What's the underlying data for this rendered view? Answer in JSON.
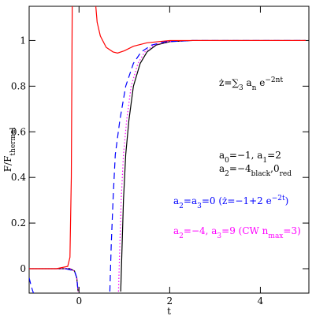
{
  "chart_data": {
    "type": "line",
    "xlabel": [
      {
        "t": "t"
      }
    ],
    "ylabel": [
      {
        "t": "F/F"
      },
      {
        "t": "thermal",
        "s": "sub"
      }
    ],
    "xlim": [
      -1.1,
      5.07
    ],
    "ylim": [
      -0.107,
      1.15
    ],
    "xticks": [
      0,
      2,
      4
    ],
    "yticks": [
      0,
      0.2,
      0.4,
      0.6,
      0.8,
      1
    ],
    "series": [
      {
        "color": "#000000",
        "style": "solid",
        "x": [
          -1.1,
          -0.5,
          -0.2,
          -0.1,
          -0.05,
          -0.02,
          0.5,
          0.92,
          0.95,
          0.98,
          1.03,
          1.1,
          1.2,
          1.35,
          1.5,
          1.7,
          2.0,
          2.5,
          5
        ],
        "values": [
          0,
          0,
          0,
          -0.01,
          -0.04,
          -0.1,
          null,
          -0.1,
          0.1,
          0.3,
          0.5,
          0.65,
          0.8,
          0.9,
          0.95,
          0.98,
          0.995,
          1,
          1
        ]
      },
      {
        "color": "#ff00ff",
        "style": "dotted",
        "x": [
          -1.1,
          -0.5,
          -0.2,
          -0.1,
          -0.05,
          -0.02,
          0.5,
          0.87,
          0.9,
          0.93,
          0.98,
          1.05,
          1.15,
          1.3,
          1.45,
          1.65,
          1.95,
          2.5,
          5
        ],
        "values": [
          0,
          0,
          0,
          -0.01,
          -0.04,
          -0.1,
          null,
          -0.1,
          0.1,
          0.3,
          0.5,
          0.65,
          0.8,
          0.9,
          0.95,
          0.98,
          0.995,
          1,
          1
        ]
      },
      {
        "color": "#0000ff",
        "style": "dashed",
        "x": [
          -1.1,
          -1.05,
          -1.0,
          -0.6,
          -0.3,
          -0.1,
          -0.05,
          -0.02,
          0.3,
          0.68,
          0.71,
          0.75,
          0.8,
          0.9,
          1.03,
          1.2,
          1.37,
          1.6,
          1.9,
          2.5,
          5
        ],
        "values": [
          -0.04,
          -0.08,
          -0.11,
          null,
          0,
          -0.01,
          -0.04,
          -0.1,
          null,
          -0.1,
          0.1,
          0.3,
          0.5,
          0.65,
          0.8,
          0.9,
          0.95,
          0.98,
          0.995,
          1,
          1
        ]
      },
      {
        "color": "#ff0000",
        "style": "solid",
        "x": [
          -1.1,
          -0.5,
          -0.25,
          -0.2,
          -0.17,
          -0.15,
          0.1,
          0.37,
          0.4,
          0.47,
          0.6,
          0.75,
          0.85,
          1.0,
          1.2,
          1.5,
          2.0,
          5
        ],
        "values": [
          0,
          0,
          0.01,
          0.05,
          0.4,
          1.15,
          null,
          1.15,
          1.08,
          1.02,
          0.97,
          0.95,
          0.945,
          0.955,
          0.975,
          0.99,
          1,
          1
        ]
      }
    ],
    "annotations": [
      {
        "color": "#000000",
        "parts": [
          {
            "t": "ż=∑"
          },
          {
            "t": "3",
            "s": "sub"
          },
          {
            "t": " a"
          },
          {
            "t": "n",
            "s": "sub"
          },
          {
            "t": " e"
          },
          {
            "t": "−2nt",
            "s": "sup"
          }
        ]
      },
      {
        "color": "#000000",
        "parts": [
          {
            "t": "a"
          },
          {
            "t": "0",
            "s": "sub"
          },
          {
            "t": "=−1,  a"
          },
          {
            "t": "1",
            "s": "sub"
          },
          {
            "t": "=2"
          }
        ]
      },
      {
        "color": "#000000",
        "parts": [
          {
            "t": "a"
          },
          {
            "t": "2",
            "s": "sub"
          },
          {
            "t": "=−4"
          },
          {
            "t": "black",
            "s": "sub"
          },
          {
            "t": ",0"
          },
          {
            "t": "red",
            "s": "sub"
          }
        ]
      },
      {
        "color": "#0000ff",
        "parts": [
          {
            "t": "a"
          },
          {
            "t": "2",
            "s": "sub"
          },
          {
            "t": "=a"
          },
          {
            "t": "3",
            "s": "sub"
          },
          {
            "t": "=0  (ż=−1+2 e"
          },
          {
            "t": "−2t",
            "s": "sup"
          },
          {
            "t": ")"
          }
        ]
      },
      {
        "color": "#ff00ff",
        "parts": [
          {
            "t": "a"
          },
          {
            "t": "2",
            "s": "sub"
          },
          {
            "t": "=−4,  a"
          },
          {
            "t": "3",
            "s": "sub"
          },
          {
            "t": "=9 (CW n"
          },
          {
            "t": "max",
            "s": "sub"
          },
          {
            "t": "=3)"
          }
        ]
      }
    ]
  }
}
